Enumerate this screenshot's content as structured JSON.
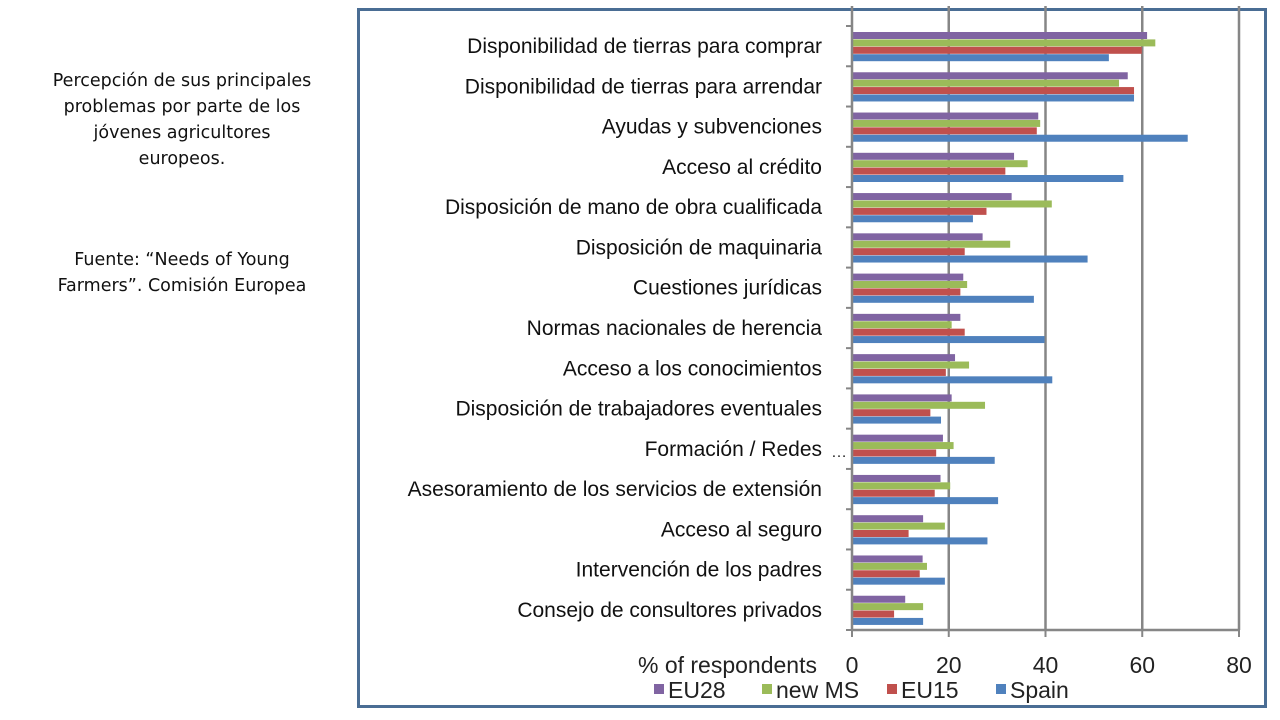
{
  "caption": {
    "description_lines": [
      "Percepción de sus principales",
      "problemas por parte de los",
      "jóvenes agricultores",
      "europeos."
    ],
    "source_lines": [
      "Fuente: “Needs of Young",
      "Farmers”. Comisión Europea"
    ]
  },
  "marker_text": "…",
  "chart_data": {
    "type": "bar",
    "orientation": "horizontal",
    "title": "",
    "xlabel": "% of respondents",
    "ylabel": "",
    "xlim": [
      0,
      80
    ],
    "xticks": [
      0,
      20,
      40,
      60,
      80
    ],
    "grid": true,
    "legend_position": "bottom",
    "categories": [
      "Disponibilidad de tierras para comprar",
      "Disponibilidad de tierras para arrendar",
      "Ayudas y subvenciones",
      "Acceso al crédito",
      "Disposición de mano de obra cualificada",
      "Disposición de maquinaria",
      "Cuestiones jurídicas",
      "Normas nacionales de herencia",
      "Acceso a los conocimientos",
      "Disposición de trabajadores eventuales",
      "Formación / Redes",
      "Asesoramiento de los servicios de extensión",
      "Acceso al seguro",
      "Intervención de los padres",
      "Consejo de consultores privados"
    ],
    "series": [
      {
        "name": "EU28",
        "color": "#8064a2",
        "values": [
          61,
          57,
          38.5,
          33.5,
          33,
          27,
          23,
          22.4,
          21.3,
          20.6,
          18.8,
          18.3,
          14.7,
          14.6,
          11
        ]
      },
      {
        "name": "new MS",
        "color": "#9bbb59",
        "values": [
          62.7,
          55.2,
          38.9,
          36.3,
          41.3,
          32.7,
          23.8,
          20.6,
          24.2,
          27.5,
          21,
          20.3,
          19.2,
          15.5,
          14.7
        ]
      },
      {
        "name": "EU15",
        "color": "#c0504d",
        "values": [
          59.9,
          58.3,
          38.2,
          31.7,
          27.8,
          23.3,
          22.4,
          23.3,
          19.4,
          16.2,
          17.4,
          17.1,
          11.7,
          14,
          8.7
        ]
      },
      {
        "name": "Spain",
        "color": "#4f81bd",
        "values": [
          53.1,
          58.3,
          69.4,
          56.1,
          25,
          48.7,
          37.6,
          39.8,
          41.4,
          18.4,
          29.5,
          30.2,
          28,
          19.2,
          14.7
        ]
      }
    ]
  }
}
